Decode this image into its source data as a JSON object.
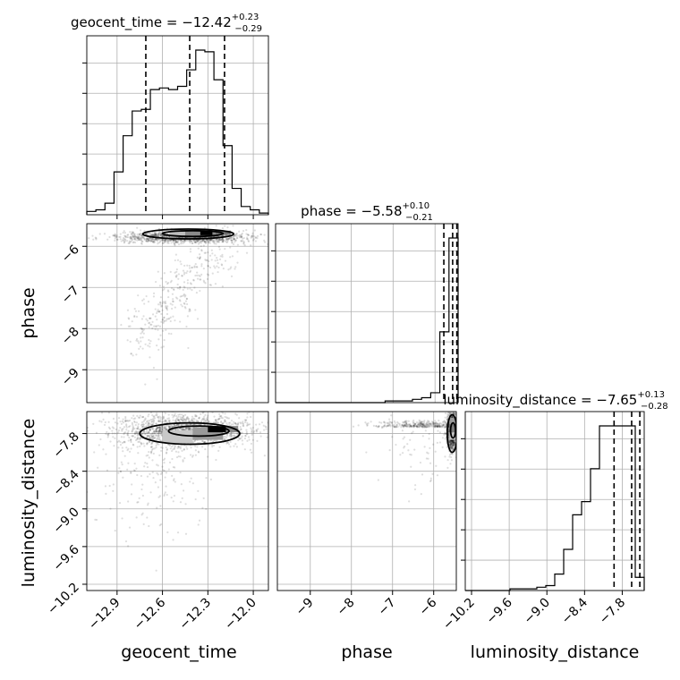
{
  "chart_data": {
    "type": "corner",
    "parameters": [
      "geocent_time",
      "phase",
      "luminosity_distance"
    ],
    "titles": [
      {
        "label": "geocent_time = −12.42",
        "sup": "+0.23",
        "sub": "−0.29"
      },
      {
        "label": "phase = −5.58",
        "sup": "+0.10",
        "sub": "−0.21"
      },
      {
        "label": "luminosity_distance = −7.65",
        "sup": "+0.13",
        "sub": "−0.28"
      }
    ],
    "axis_labels": [
      "geocent_time",
      "phase",
      "luminosity_distance"
    ],
    "ranges": {
      "geocent_time": [
        -13.1,
        -11.9
      ],
      "phase": [
        -9.8,
        -5.45
      ],
      "luminosity_distance": [
        -10.3,
        -7.45
      ]
    },
    "ticks": {
      "geocent_time": [
        "−12.9",
        "−12.6",
        "−12.3",
        "−12.0"
      ],
      "geocent_time_values": [
        -12.9,
        -12.6,
        -12.3,
        -12.0
      ],
      "phase": [
        "−9",
        "−8",
        "−7",
        "−6"
      ],
      "phase_values": [
        -9,
        -8,
        -7,
        -6
      ],
      "luminosity_distance": [
        "−10.2",
        "−9.6",
        "−9.0",
        "−8.4",
        "−7.8"
      ],
      "luminosity_distance_values": [
        -10.2,
        -9.6,
        -9.0,
        -8.4,
        -7.8
      ]
    },
    "quantiles": {
      "geocent_time": [
        -12.71,
        -12.42,
        -12.19
      ],
      "phase": [
        -5.79,
        -5.58,
        -5.48
      ],
      "luminosity_distance": [
        -7.93,
        -7.65,
        -7.52
      ]
    },
    "histograms": {
      "geocent_time": {
        "edges_start": -13.1,
        "bin_width": 0.06,
        "counts": [
          2,
          3,
          7,
          26,
          48,
          63,
          64,
          76,
          77,
          76,
          78,
          88,
          100,
          99,
          82,
          42,
          16,
          5,
          3,
          1
        ]
      },
      "phase": {
        "edges_start": -9.8,
        "bin_width": 0.2175,
        "counts": [
          0,
          0,
          0,
          0,
          0,
          0,
          0,
          0,
          0,
          0,
          0,
          0,
          1,
          1,
          1,
          2,
          3,
          6,
          43,
          100
        ]
      },
      "luminosity_distance": {
        "edges_start": -10.3,
        "bin_width": 0.1425,
        "counts": [
          0,
          0,
          0,
          0,
          0,
          1,
          1,
          1,
          2,
          3,
          10,
          25,
          46,
          54,
          74,
          100,
          100,
          100,
          100,
          8
        ]
      }
    },
    "grid": true
  }
}
